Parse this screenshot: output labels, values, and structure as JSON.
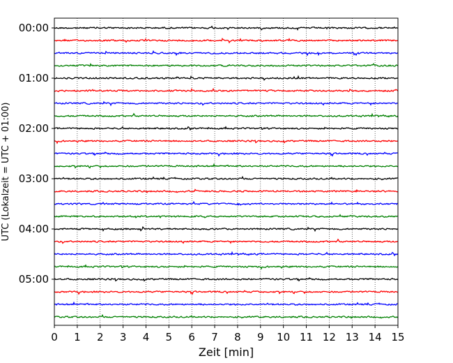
{
  "chart_data": {
    "type": "line",
    "title": "",
    "xlabel": "Zeit  [min]",
    "ylabel": "UTC (Lokalzeit = UTC + 01:00)",
    "xlim": [
      0,
      15
    ],
    "x_ticks": [
      0,
      1,
      2,
      3,
      4,
      5,
      6,
      7,
      8,
      9,
      10,
      11,
      12,
      13,
      14,
      15
    ],
    "y_tick_labels": [
      "00:00",
      "01:00",
      "02:00",
      "03:00",
      "04:00",
      "05:00"
    ],
    "trace_interval_minutes": 15,
    "trace_count": 24,
    "first_trace": "00:00",
    "last_trace": "05:45",
    "colors_cycle": [
      "#000000",
      "#ff0000",
      "#0000ff",
      "#008000"
    ],
    "grid": {
      "vertical": true,
      "style": "dotted"
    },
    "legend": "none"
  }
}
